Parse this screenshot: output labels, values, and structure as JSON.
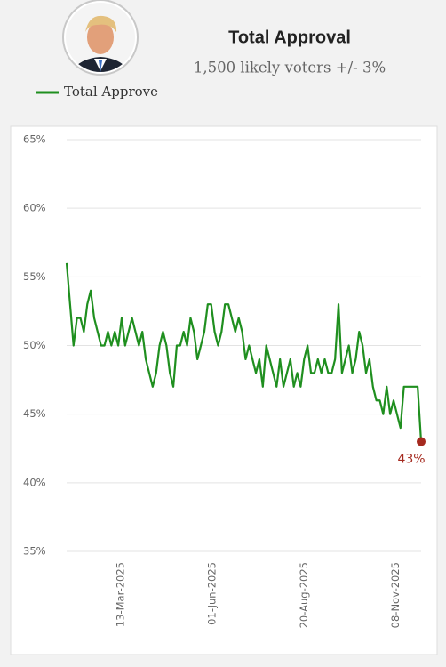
{
  "chart_data": {
    "type": "line",
    "title": "Total Approval",
    "subtitle": "1,500 likely voters +/- 3%",
    "x": [
      "2025-01-28",
      "2025-01-31",
      "2025-02-03",
      "2025-02-06",
      "2025-02-09",
      "2025-02-12",
      "2025-02-15",
      "2025-02-18",
      "2025-02-21",
      "2025-02-24",
      "2025-02-27",
      "2025-03-02",
      "2025-03-05",
      "2025-03-08",
      "2025-03-11",
      "2025-03-14",
      "2025-03-17",
      "2025-03-20",
      "2025-03-23",
      "2025-03-26",
      "2025-03-29",
      "2025-04-01",
      "2025-04-04",
      "2025-04-07",
      "2025-04-10",
      "2025-04-13",
      "2025-04-16",
      "2025-04-19",
      "2025-04-22",
      "2025-04-25",
      "2025-04-28",
      "2025-05-01",
      "2025-05-04",
      "2025-05-07",
      "2025-05-10",
      "2025-05-13",
      "2025-05-16",
      "2025-05-19",
      "2025-05-22",
      "2025-05-25",
      "2025-05-28",
      "2025-05-31",
      "2025-06-03",
      "2025-06-06",
      "2025-06-09",
      "2025-06-12",
      "2025-06-15",
      "2025-06-18",
      "2025-06-21",
      "2025-06-24",
      "2025-06-27",
      "2025-06-30",
      "2025-07-03",
      "2025-07-06",
      "2025-07-09",
      "2025-07-12",
      "2025-07-15",
      "2025-07-18",
      "2025-07-21",
      "2025-07-24",
      "2025-07-27",
      "2025-07-30",
      "2025-08-02",
      "2025-08-05",
      "2025-08-08",
      "2025-08-11",
      "2025-08-14",
      "2025-08-17",
      "2025-08-20",
      "2025-08-23",
      "2025-08-26",
      "2025-08-29",
      "2025-09-01",
      "2025-09-04",
      "2025-09-07",
      "2025-09-10",
      "2025-09-13",
      "2025-09-16",
      "2025-09-19",
      "2025-09-22",
      "2025-09-25",
      "2025-09-28",
      "2025-10-01",
      "2025-10-04",
      "2025-10-07",
      "2025-10-10",
      "2025-10-13",
      "2025-10-16",
      "2025-10-19",
      "2025-10-22",
      "2025-10-25",
      "2025-10-28",
      "2025-10-31",
      "2025-11-03",
      "2025-11-06",
      "2025-11-09",
      "2025-11-12",
      "2025-11-15",
      "2025-11-18",
      "2025-11-21",
      "2025-11-24",
      "2025-11-27",
      "2025-11-30",
      "2025-12-03"
    ],
    "series": [
      {
        "name": "Total Approve",
        "color": "#1f8f1f",
        "values": [
          56,
          53,
          50,
          52,
          52,
          51,
          53,
          54,
          52,
          51,
          50,
          50,
          51,
          50,
          51,
          50,
          52,
          50,
          51,
          52,
          51,
          50,
          51,
          49,
          48,
          47,
          48,
          50,
          51,
          50,
          48,
          47,
          50,
          50,
          51,
          50,
          52,
          51,
          49,
          50,
          51,
          53,
          53,
          51,
          50,
          51,
          53,
          53,
          52,
          51,
          52,
          51,
          49,
          50,
          49,
          48,
          49,
          47,
          50,
          49,
          48,
          47,
          49,
          47,
          48,
          49,
          47,
          48,
          47,
          49,
          50,
          48,
          48,
          49,
          48,
          49,
          48,
          48,
          49,
          53,
          48,
          49,
          50,
          48,
          49,
          51,
          50,
          48,
          49,
          47,
          46,
          46,
          45,
          47,
          45,
          46,
          45,
          44,
          47,
          47,
          47,
          47,
          47,
          43
        ]
      }
    ],
    "annotations": [
      {
        "x": "2025-12-03",
        "y": 43,
        "label": "43%",
        "color": "#a52a1f"
      }
    ],
    "xlim": [
      "2025-01-28",
      "2025-12-03"
    ],
    "xticks": [
      {
        "value": "2025-03-13",
        "label": "13-Mar-2025"
      },
      {
        "value": "2025-06-01",
        "label": "01-Jun-2025"
      },
      {
        "value": "2025-08-20",
        "label": "20-Aug-2025"
      },
      {
        "value": "2025-11-08",
        "label": "08-Nov-2025"
      }
    ],
    "ylim": [
      35,
      65
    ],
    "yticks": [
      {
        "value": 35,
        "label": "35%"
      },
      {
        "value": 40,
        "label": "40%"
      },
      {
        "value": 45,
        "label": "45%"
      },
      {
        "value": 50,
        "label": "50%"
      },
      {
        "value": 55,
        "label": "55%"
      },
      {
        "value": 60,
        "label": "60%"
      },
      {
        "value": 65,
        "label": "65%"
      }
    ],
    "grid": true
  }
}
